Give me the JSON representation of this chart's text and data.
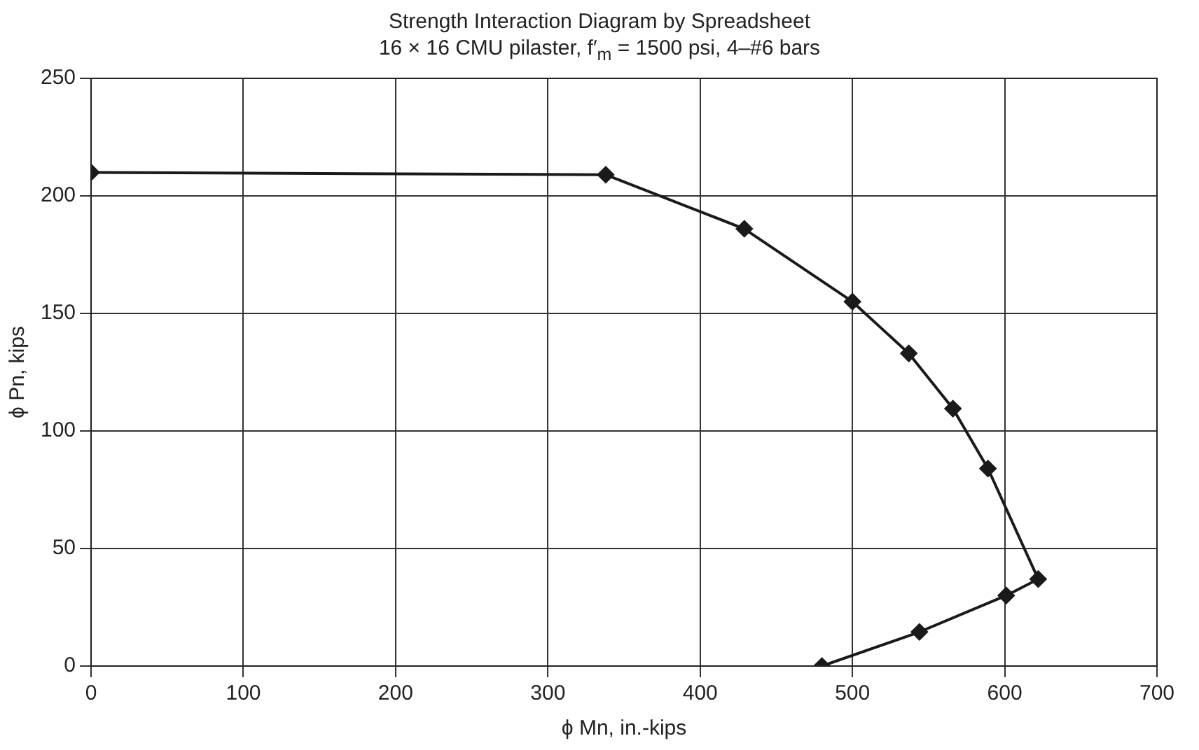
{
  "chart_data": {
    "type": "line",
    "title": "Strength Interaction Diagram by Spreadsheet",
    "subtitle": "16 × 16 CMU pilaster, f′$_{m}$ = 1500 psi, 4–#6 bars",
    "xlabel": "ϕ Mn, in.-kips",
    "ylabel": "ϕ Pn, kips",
    "x": [
      0,
      338,
      429,
      500,
      537,
      566,
      589,
      622,
      601,
      544,
      480
    ],
    "series": [
      {
        "color": "#1a1a1a",
        "values": [
          210,
          209,
          186,
          155,
          133,
          109.5,
          84,
          37,
          30,
          14.5,
          0
        ]
      }
    ],
    "xlim": [
      0,
      700
    ],
    "xticks": [
      0,
      100,
      200,
      300,
      400,
      500,
      600,
      700
    ],
    "ylim": [
      0,
      250
    ],
    "yticks": [
      0,
      50,
      100,
      150,
      200,
      250
    ],
    "grid": true,
    "legend": false,
    "marker": "diamond",
    "line_style": "solid"
  }
}
